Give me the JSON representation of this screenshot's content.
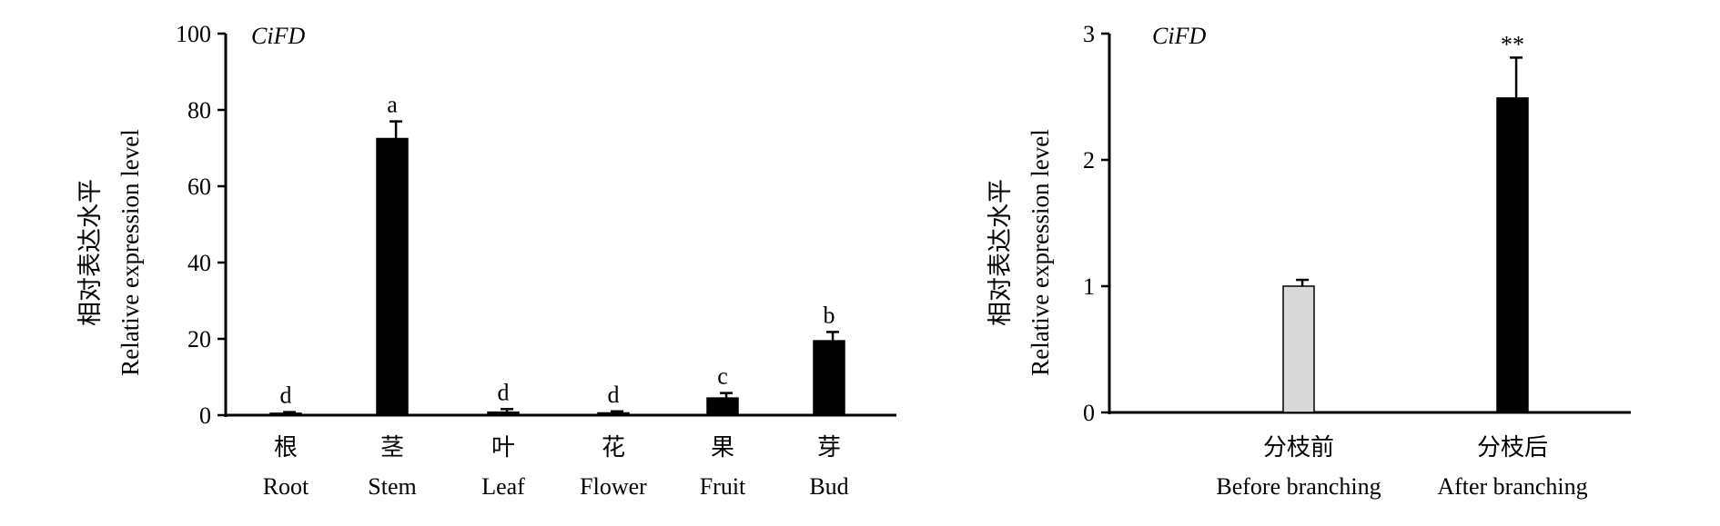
{
  "chart_data": [
    {
      "type": "bar",
      "annotation": "CiFD",
      "ylabel_zh": "相对表达水平",
      "ylabel_en": "Relative expression level",
      "ylim": [
        0,
        100
      ],
      "yticks": [
        0,
        20,
        40,
        60,
        80,
        100
      ],
      "categories_zh": [
        "根",
        "茎",
        "叶",
        "花",
        "果",
        "芽"
      ],
      "categories_en": [
        "Root",
        "Stem",
        "Leaf",
        "Flower",
        "Fruit",
        "Bud"
      ],
      "values": [
        0.5,
        72.5,
        0.8,
        0.6,
        4.5,
        19.5
      ],
      "errors": [
        0.3,
        4.5,
        0.8,
        0.4,
        1.3,
        2.3
      ],
      "significance": [
        "d",
        "a",
        "d",
        "d",
        "c",
        "b"
      ],
      "bar_colors": [
        "#000000",
        "#000000",
        "#000000",
        "#000000",
        "#000000",
        "#000000"
      ],
      "grid": false
    },
    {
      "type": "bar",
      "annotation": "CiFD",
      "ylabel_zh": "相对表达水平",
      "ylabel_en": "Relative expression level",
      "ylim": [
        0,
        3
      ],
      "yticks": [
        0,
        1,
        2,
        3
      ],
      "categories_zh": [
        "分枝前",
        "分枝后"
      ],
      "categories_en": [
        "Before branching",
        "After branching"
      ],
      "values": [
        1.0,
        2.49
      ],
      "errors": [
        0.05,
        0.32
      ],
      "significance": [
        "",
        "**"
      ],
      "bar_colors": [
        "#d9d9d9",
        "#000000"
      ],
      "grid": false
    }
  ]
}
